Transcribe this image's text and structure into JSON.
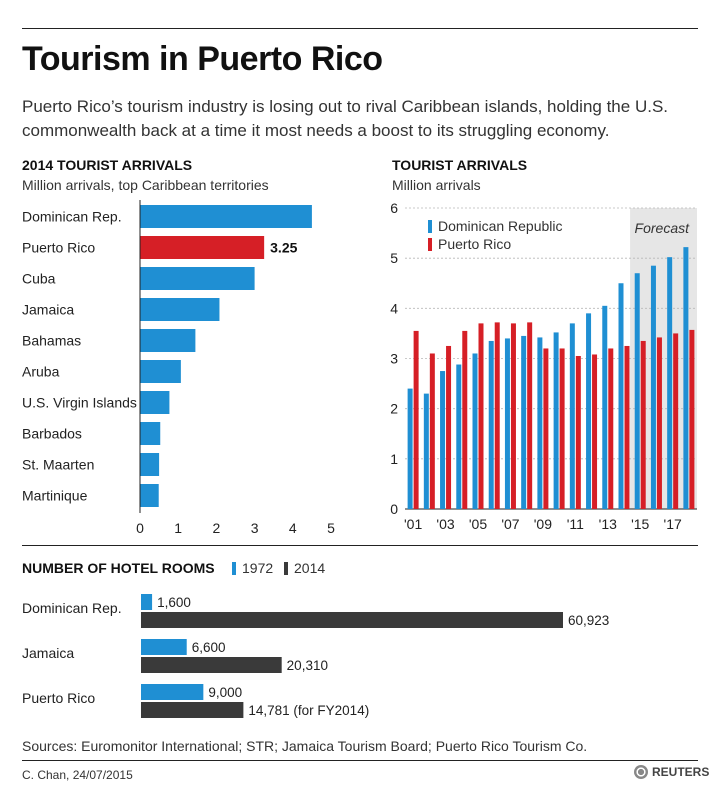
{
  "header": {
    "title": "Tourism in Puerto Rico",
    "subtitle": "Puerto Rico’s tourism industry is losing out to rival Caribbean islands, holding the U.S. commonwealth back at a time it most needs a boost to its struggling economy."
  },
  "colors": {
    "blue": "#1f8fd3",
    "red": "#d61f26",
    "dark": "#3a3a3a",
    "forecast_bg": "#e6e6e6"
  },
  "chart_data": [
    {
      "type": "bar",
      "orientation": "horizontal",
      "title": "2014 TOURIST ARRIVALS",
      "subtitle": "Million arrivals, top Caribbean territories",
      "categories": [
        "Dominican Rep.",
        "Puerto Rico",
        "Cuba",
        "Jamaica",
        "Bahamas",
        "Aruba",
        "U.S. Virgin Islands",
        "Barbados",
        "St. Maarten",
        "Martinique"
      ],
      "values": [
        4.5,
        3.25,
        3.0,
        2.08,
        1.45,
        1.07,
        0.77,
        0.53,
        0.5,
        0.49
      ],
      "highlight": "Puerto Rico",
      "highlight_label": "3.25",
      "xlim": [
        0,
        5
      ],
      "xticks": [
        "0",
        "1",
        "2",
        "3",
        "4",
        "5"
      ],
      "grid": false
    },
    {
      "type": "bar",
      "title": "TOURIST ARRIVALS",
      "subtitle": "Million arrivals",
      "years": [
        2001,
        2002,
        2003,
        2004,
        2005,
        2006,
        2007,
        2008,
        2009,
        2010,
        2011,
        2012,
        2013,
        2014,
        2015,
        2016,
        2017,
        2018
      ],
      "series": [
        {
          "name": "Dominican Republic",
          "values": [
            2.4,
            2.3,
            2.75,
            2.88,
            3.1,
            3.35,
            3.4,
            3.45,
            3.42,
            3.52,
            3.7,
            3.9,
            4.05,
            4.5,
            4.7,
            4.85,
            5.02,
            5.22
          ]
        },
        {
          "name": "Puerto Rico",
          "values": [
            3.55,
            3.1,
            3.25,
            3.55,
            3.7,
            3.72,
            3.7,
            3.72,
            3.2,
            3.2,
            3.05,
            3.08,
            3.2,
            3.25,
            3.35,
            3.42,
            3.5,
            3.57
          ]
        }
      ],
      "ylim": [
        0,
        6
      ],
      "yticks": [
        "0",
        "1",
        "2",
        "3",
        "4",
        "5",
        "6"
      ],
      "xtick_labels": [
        {
          "year": 2001,
          "label": "'01"
        },
        {
          "year": 2003,
          "label": "'03"
        },
        {
          "year": 2005,
          "label": "'05"
        },
        {
          "year": 2007,
          "label": "'07"
        },
        {
          "year": 2009,
          "label": "'09"
        },
        {
          "year": 2011,
          "label": "'11"
        },
        {
          "year": 2013,
          "label": "'13"
        },
        {
          "year": 2015,
          "label": "'15"
        },
        {
          "year": 2017,
          "label": "'17"
        }
      ],
      "forecast_label": "Forecast",
      "forecast_from": 2015,
      "legend": "top-left",
      "grid": true
    },
    {
      "type": "bar",
      "orientation": "horizontal",
      "title": "NUMBER OF HOTEL ROOMS",
      "categories": [
        "Dominican Rep.",
        "Jamaica",
        "Puerto Rico"
      ],
      "series": [
        {
          "name": "1972",
          "values": [
            1600,
            6600,
            9000
          ],
          "labels": [
            "1,600",
            "6,600",
            "9,000"
          ]
        },
        {
          "name": "2014",
          "values": [
            60923,
            20310,
            14781
          ],
          "labels": [
            "60,923",
            "20,310",
            "14,781 (for FY2014)"
          ]
        }
      ],
      "legend": "top"
    }
  ],
  "footer": {
    "sources": "Sources: Euromonitor International; STR; Jamaica Tourism Board; Puerto Rico Tourism Co.",
    "credit": "C. Chan,  24/07/2015",
    "brand": "REUTERS"
  }
}
